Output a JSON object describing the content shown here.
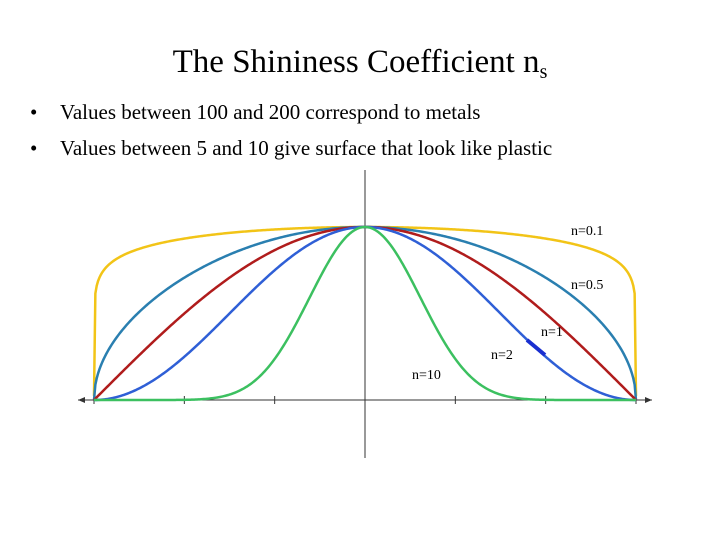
{
  "slide": {
    "title_main": "The Shininess Coefficient  n",
    "title_sub": "s",
    "bullets": [
      "Values between 100 and 200 correspond to metals",
      "Values between 5 and 10 give surface that look like plastic"
    ]
  },
  "chart_data": {
    "type": "line",
    "title": "",
    "xlabel": "",
    "ylabel": "",
    "function": "cos^n(theta)",
    "xlim": [
      -90,
      90
    ],
    "ylim": [
      0,
      1
    ],
    "grid": false,
    "series": [
      {
        "name": "n=0.1",
        "exponent": 0.1,
        "color": "#f2c417"
      },
      {
        "name": "n=0.5",
        "exponent": 0.5,
        "color": "#2a7fb0"
      },
      {
        "name": "n=1",
        "exponent": 1,
        "color": "#b01c1c"
      },
      {
        "name": "n=2",
        "exponent": 2,
        "color": "#2f5fd6"
      },
      {
        "name": "n=10",
        "exponent": 10,
        "color": "#3cc060"
      }
    ],
    "annotations": [
      {
        "text": "n=0.1"
      },
      {
        "text": "n=0.5"
      },
      {
        "text": "n=1"
      },
      {
        "text": "n=2"
      },
      {
        "text": "n=10"
      }
    ],
    "axis_color": "#333333",
    "highlight_color": "#1a2fd0"
  }
}
